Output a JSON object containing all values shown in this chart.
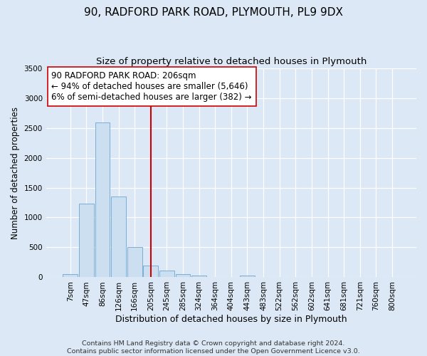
{
  "title1": "90, RADFORD PARK ROAD, PLYMOUTH, PL9 9DX",
  "title2": "Size of property relative to detached houses in Plymouth",
  "xlabel": "Distribution of detached houses by size in Plymouth",
  "ylabel": "Number of detached properties",
  "bar_labels": [
    "7sqm",
    "47sqm",
    "86sqm",
    "126sqm",
    "166sqm",
    "205sqm",
    "245sqm",
    "285sqm",
    "324sqm",
    "364sqm",
    "404sqm",
    "443sqm",
    "483sqm",
    "522sqm",
    "562sqm",
    "602sqm",
    "641sqm",
    "681sqm",
    "721sqm",
    "760sqm",
    "800sqm"
  ],
  "bar_values": [
    50,
    1230,
    2590,
    1350,
    500,
    200,
    115,
    50,
    30,
    0,
    0,
    30,
    0,
    0,
    0,
    0,
    0,
    0,
    0,
    0,
    0
  ],
  "bar_color": "#ccdff0",
  "bar_edge_color": "#7aaed6",
  "vline_x": 5,
  "vline_color": "#cc0000",
  "annotation_line1": "90 RADFORD PARK ROAD: 206sqm",
  "annotation_line2": "← 94% of detached houses are smaller (5,646)",
  "annotation_line3": "6% of semi-detached houses are larger (382) →",
  "ylim": [
    0,
    3500
  ],
  "yticks": [
    0,
    500,
    1000,
    1500,
    2000,
    2500,
    3000,
    3500
  ],
  "background_color": "#dce8f5",
  "plot_bg_color": "#dce8f5",
  "grid_color": "#ffffff",
  "footer_line1": "Contains HM Land Registry data © Crown copyright and database right 2024.",
  "footer_line2": "Contains public sector information licensed under the Open Government Licence v3.0.",
  "title1_fontsize": 11,
  "title2_fontsize": 9.5,
  "xlabel_fontsize": 9,
  "ylabel_fontsize": 8.5,
  "tick_fontsize": 7.5,
  "annotation_fontsize": 8.5,
  "footer_fontsize": 6.8
}
